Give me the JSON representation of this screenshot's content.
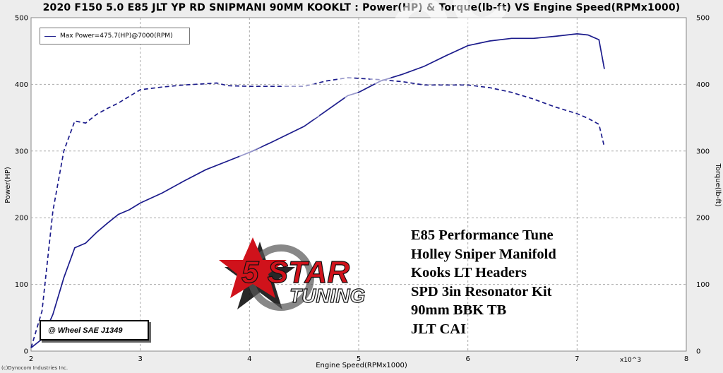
{
  "title": "2020 F150 5.0 E85 JLT YP RD SNIPMANI 90MM KOOKLT : Power(HP) & Torque(lb-ft) VS Engine Speed(RPMx1000)",
  "legend_label": "Max Power=475.7(HP)@7000(RPM)",
  "condition_label": "@ Wheel SAE J1349",
  "copyright": "(c)Dynocom Industries Inc.",
  "x_scale_note": "x10^3",
  "watermark": "DYNOCOM",
  "logo": {
    "main": "5 STAR",
    "sub": "TUNING"
  },
  "mods": [
    "E85 Performance Tune",
    "Holley Sniper Manifold",
    "Kooks LT Headers",
    "SPD 3in Resonator Kit",
    "90mm BBK TB",
    "JLT CAI"
  ],
  "colors": {
    "series": "#1c1c8c",
    "background": "#ededed",
    "plot_background": "#ffffff",
    "grid": "#aaaaaa",
    "logo_red": "#d0121b"
  },
  "chart_data": {
    "type": "line",
    "title": "2020 F150 5.0 E85 JLT YP RD SNIPMANI 90MM KOOKLT : Power(HP) & Torque(lb-ft) VS Engine Speed(RPMx1000)",
    "xlabel": "Engine Speed(RPMx1000)",
    "ylabel": "Power(HP)",
    "y2label": "Torque(lb-ft)",
    "xlim": [
      2,
      8
    ],
    "ylim": [
      0,
      500
    ],
    "y2lim": [
      0,
      500
    ],
    "xticks": [
      2,
      3,
      4,
      5,
      6,
      7,
      8
    ],
    "yticks": [
      0,
      100,
      200,
      300,
      400,
      500
    ],
    "grid": true,
    "legend_position": "top-left",
    "series": [
      {
        "name": "Max Power=475.7(HP)@7000(RPM)",
        "axis": "left",
        "style": "solid",
        "x": [
          2.0,
          2.1,
          2.2,
          2.3,
          2.4,
          2.5,
          2.6,
          2.7,
          2.8,
          2.9,
          3.0,
          3.2,
          3.4,
          3.6,
          3.8,
          4.0,
          4.2,
          4.5,
          4.7,
          4.9,
          5.0,
          5.2,
          5.4,
          5.6,
          5.8,
          6.0,
          6.2,
          6.4,
          6.6,
          6.8,
          7.0,
          7.1,
          7.2,
          7.25
        ],
        "y": [
          5,
          18,
          55,
          110,
          155,
          162,
          178,
          192,
          205,
          212,
          222,
          237,
          255,
          272,
          285,
          298,
          313,
          337,
          360,
          383,
          388,
          405,
          415,
          427,
          443,
          458,
          465,
          469,
          469,
          472,
          475.7,
          474,
          467,
          423
        ]
      },
      {
        "name": "Torque",
        "axis": "right",
        "style": "dashed",
        "x": [
          2.0,
          2.1,
          2.2,
          2.3,
          2.4,
          2.5,
          2.6,
          2.7,
          2.8,
          2.9,
          3.0,
          3.2,
          3.4,
          3.6,
          3.7,
          3.8,
          4.0,
          4.2,
          4.5,
          4.7,
          4.9,
          5.0,
          5.2,
          5.4,
          5.6,
          5.8,
          6.0,
          6.2,
          6.4,
          6.6,
          6.8,
          7.0,
          7.1,
          7.2,
          7.25
        ],
        "y": [
          5,
          60,
          210,
          300,
          345,
          342,
          355,
          364,
          372,
          382,
          392,
          396,
          399,
          401,
          402,
          398,
          397,
          397,
          397,
          405,
          410,
          409,
          407,
          404,
          399,
          399,
          399,
          395,
          388,
          378,
          366,
          356,
          349,
          340,
          306
        ]
      }
    ]
  }
}
